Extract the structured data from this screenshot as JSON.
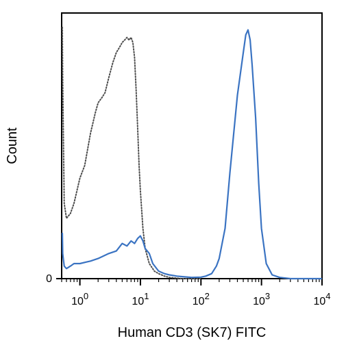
{
  "chart_data": {
    "type": "line",
    "title": "",
    "xlabel": "Human CD3 (SK7) FITC",
    "ylabel": "Count",
    "x_scale": "log",
    "xlim": [
      0.5,
      10000
    ],
    "ylim": [
      0,
      100
    ],
    "y_tick_labels": [
      {
        "value": 0,
        "label": "0"
      }
    ],
    "x_tick_labels": [
      {
        "value": 1,
        "base": "10",
        "exp": "0"
      },
      {
        "value": 10,
        "base": "10",
        "exp": "1"
      },
      {
        "value": 100,
        "base": "10",
        "exp": "2"
      },
      {
        "value": 1000,
        "base": "10",
        "exp": "3"
      },
      {
        "value": 10000,
        "base": "10",
        "exp": "4"
      }
    ],
    "grid": false,
    "legend": "none",
    "series": [
      {
        "style": "dotted",
        "color": "#4d4d4d",
        "x": [
          0.5,
          0.52,
          0.55,
          0.6,
          0.7,
          0.8,
          1.0,
          1.2,
          1.5,
          1.8,
          2.0,
          2.3,
          2.6,
          3.0,
          3.5,
          4.0,
          4.5,
          5.0,
          5.5,
          6.0,
          6.5,
          7.0,
          7.5,
          8.0,
          8.5,
          9.0,
          9.5,
          10,
          11,
          12,
          14,
          17,
          20,
          25,
          30,
          40,
          50,
          100
        ],
        "y": [
          100,
          80,
          30,
          24,
          26,
          30,
          40,
          45,
          58,
          66,
          70,
          72,
          74,
          80,
          86,
          90,
          92,
          94,
          95,
          96,
          95,
          96,
          94,
          88,
          75,
          60,
          45,
          35,
          20,
          12,
          6,
          3,
          2,
          1,
          0.5,
          0.2,
          0,
          0
        ]
      },
      {
        "style": "solid",
        "color": "#3a73c2",
        "x": [
          0.5,
          0.52,
          0.55,
          0.6,
          0.7,
          0.8,
          1.0,
          1.5,
          2.0,
          3.0,
          4.0,
          5.0,
          6.0,
          7.0,
          8.0,
          9.0,
          10,
          11,
          12,
          14,
          16,
          20,
          25,
          30,
          40,
          50,
          70,
          100,
          120,
          150,
          180,
          200,
          250,
          300,
          400,
          500,
          550,
          600,
          650,
          700,
          800,
          900,
          1000,
          1200,
          1500,
          2000,
          3000,
          5000,
          10000
        ],
        "y": [
          18,
          10,
          5,
          4,
          5,
          6,
          6,
          7,
          8,
          10,
          11,
          14,
          13,
          15,
          14,
          16,
          17,
          15,
          12,
          10,
          6,
          3,
          2,
          1.5,
          1,
          0.8,
          0.5,
          0.6,
          1,
          2,
          5,
          8,
          20,
          42,
          73,
          90,
          97,
          99,
          95,
          85,
          64,
          38,
          20,
          6,
          1.5,
          0.5,
          0,
          0,
          0
        ]
      }
    ]
  }
}
